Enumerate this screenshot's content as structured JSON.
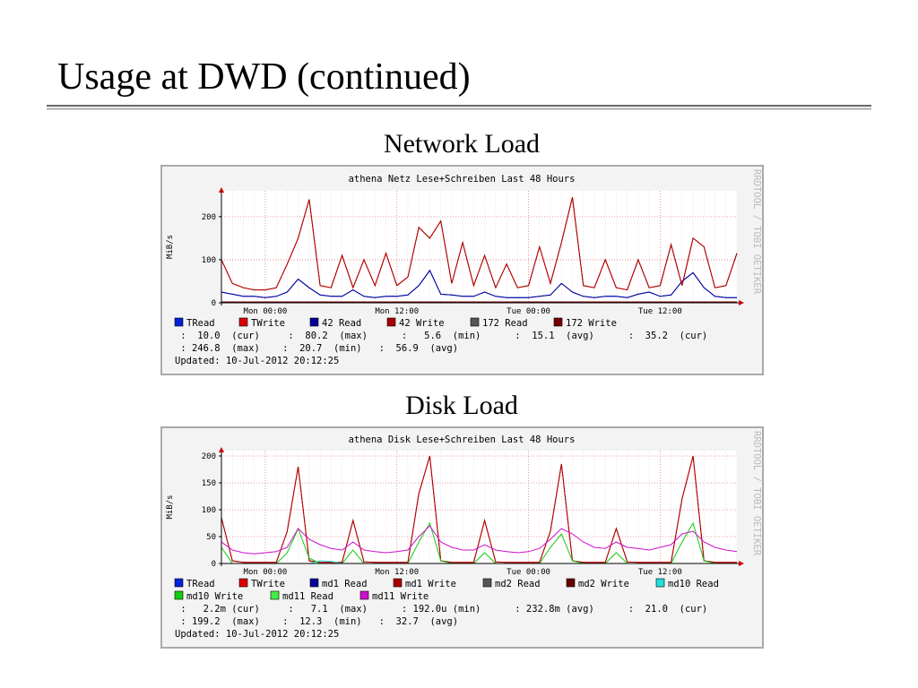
{
  "slide_title": "Usage at DWD (continued)",
  "chart_data": [
    {
      "type": "line",
      "panel_title": "Network Load",
      "title": "athena Netz Lese+Schreiben Last 48 Hours",
      "ylabel": "MiB/s",
      "watermark": "RRDTOOL / TOBI OETIKER",
      "categories": [
        null,
        null,
        null,
        null,
        "Mon 00:00",
        null,
        null,
        null,
        null,
        null,
        null,
        null,
        null,
        null,
        null,
        null,
        "Mon 12:00",
        null,
        null,
        null,
        null,
        null,
        null,
        null,
        null,
        null,
        null,
        null,
        "Tue 00:00",
        null,
        null,
        null,
        null,
        null,
        null,
        null,
        null,
        null,
        null,
        null,
        "Tue 12:00",
        null,
        null,
        null,
        null,
        null,
        null,
        null
      ],
      "ylim": [
        0,
        260
      ],
      "yticks": [
        0,
        100,
        200
      ],
      "grid": true,
      "series": [
        {
          "name": "TRead",
          "color": "#0022dd",
          "values": [
            25,
            20,
            15,
            15,
            12,
            15,
            25,
            55,
            35,
            18,
            15,
            15,
            30,
            15,
            12,
            15,
            15,
            18,
            40,
            75,
            20,
            18,
            15,
            15,
            25,
            15,
            12,
            12,
            12,
            15,
            18,
            45,
            25,
            15,
            12,
            15,
            15,
            12,
            20,
            25,
            15,
            18,
            50,
            70,
            35,
            15,
            12,
            12
          ]
        },
        {
          "name": "TWrite",
          "color": "#dd0000",
          "values": [
            100,
            45,
            35,
            30,
            30,
            35,
            90,
            150,
            240,
            40,
            35,
            110,
            35,
            100,
            40,
            115,
            40,
            60,
            175,
            150,
            190,
            45,
            140,
            40,
            110,
            35,
            90,
            35,
            40,
            130,
            45,
            140,
            245,
            40,
            35,
            100,
            35,
            30,
            100,
            35,
            40,
            135,
            40,
            150,
            130,
            35,
            40,
            115
          ]
        },
        {
          "name": "42 Read",
          "color": "#000099",
          "values": [
            25,
            20,
            15,
            15,
            12,
            15,
            25,
            55,
            35,
            18,
            15,
            15,
            30,
            15,
            12,
            15,
            15,
            18,
            40,
            75,
            20,
            18,
            15,
            15,
            25,
            15,
            12,
            12,
            12,
            15,
            18,
            45,
            25,
            15,
            12,
            15,
            15,
            12,
            20,
            25,
            15,
            18,
            50,
            70,
            35,
            15,
            12,
            12
          ]
        },
        {
          "name": "42 Write",
          "color": "#aa0000",
          "values": [
            100,
            45,
            35,
            30,
            30,
            35,
            90,
            150,
            240,
            40,
            35,
            110,
            35,
            100,
            40,
            115,
            40,
            60,
            175,
            150,
            190,
            45,
            140,
            40,
            110,
            35,
            90,
            35,
            40,
            130,
            45,
            140,
            245,
            40,
            35,
            100,
            35,
            30,
            100,
            35,
            40,
            135,
            40,
            150,
            130,
            35,
            40,
            115
          ]
        },
        {
          "name": "172 Read",
          "color": "#555555",
          "values": [
            0,
            0,
            0,
            0,
            0,
            0,
            0,
            0,
            0,
            0,
            0,
            0,
            0,
            0,
            0,
            0,
            0,
            0,
            0,
            0,
            0,
            0,
            0,
            0,
            0,
            0,
            0,
            0,
            0,
            0,
            0,
            0,
            0,
            0,
            0,
            0,
            0,
            0,
            0,
            0,
            0,
            0,
            0,
            0,
            0,
            0,
            0,
            0
          ]
        },
        {
          "name": "172 Write",
          "color": "#770000",
          "values": [
            2,
            2,
            2,
            2,
            2,
            2,
            2,
            2,
            2,
            2,
            2,
            2,
            2,
            2,
            2,
            2,
            2,
            2,
            2,
            2,
            2,
            2,
            2,
            2,
            2,
            2,
            2,
            2,
            2,
            2,
            2,
            2,
            2,
            2,
            2,
            2,
            2,
            2,
            2,
            2,
            2,
            2,
            2,
            2,
            2,
            2,
            2,
            2
          ]
        }
      ],
      "stats_lines": [
        " :  10.0  (cur)     :  80.2  (max)      :   5.6  (min)      :  15.1  (avg)      :  35.2  (cur)",
        " : 246.8  (max)    :  20.7  (min)   :  56.9  (avg)"
      ],
      "updated": "Updated: 10-Jul-2012 20:12:25"
    },
    {
      "type": "line",
      "panel_title": "Disk Load",
      "title": "athena Disk Lese+Schreiben Last 48 Hours",
      "ylabel": "MiB/s",
      "watermark": "RRDTOOL / TOBI OETIKER",
      "categories": [
        null,
        null,
        null,
        null,
        "Mon 00:00",
        null,
        null,
        null,
        null,
        null,
        null,
        null,
        null,
        null,
        null,
        null,
        "Mon 12:00",
        null,
        null,
        null,
        null,
        null,
        null,
        null,
        null,
        null,
        null,
        null,
        "Tue 00:00",
        null,
        null,
        null,
        null,
        null,
        null,
        null,
        null,
        null,
        null,
        null,
        "Tue 12:00",
        null,
        null,
        null,
        null,
        null,
        null,
        null
      ],
      "ylim": [
        0,
        210
      ],
      "yticks": [
        0,
        50,
        100,
        150,
        200
      ],
      "grid": true,
      "series": [
        {
          "name": "TRead",
          "color": "#0022dd",
          "values": [
            0,
            0,
            0,
            0,
            0,
            0,
            0,
            0,
            0,
            0,
            0,
            0,
            0,
            0,
            0,
            0,
            0,
            0,
            0,
            0,
            0,
            0,
            0,
            0,
            0,
            0,
            0,
            0,
            0,
            0,
            0,
            0,
            0,
            0,
            0,
            0,
            0,
            0,
            0,
            0,
            0,
            0,
            0,
            0,
            0,
            0,
            0,
            0
          ]
        },
        {
          "name": "TWrite",
          "color": "#dd0000",
          "values": [
            85,
            5,
            2,
            2,
            2,
            2,
            60,
            180,
            5,
            2,
            2,
            2,
            80,
            3,
            2,
            2,
            2,
            2,
            130,
            200,
            5,
            2,
            2,
            2,
            80,
            3,
            2,
            2,
            2,
            2,
            60,
            185,
            5,
            2,
            2,
            2,
            65,
            3,
            2,
            2,
            2,
            2,
            120,
            200,
            5,
            2,
            2,
            2
          ]
        },
        {
          "name": "md1 Read",
          "color": "#000099",
          "values": [
            0,
            0,
            0,
            0,
            0,
            0,
            0,
            0,
            0,
            0,
            0,
            0,
            0,
            0,
            0,
            0,
            0,
            0,
            0,
            0,
            0,
            0,
            0,
            0,
            0,
            0,
            0,
            0,
            0,
            0,
            0,
            0,
            0,
            0,
            0,
            0,
            0,
            0,
            0,
            0,
            0,
            0,
            0,
            0,
            0,
            0,
            0,
            0
          ]
        },
        {
          "name": "md1 Write",
          "color": "#aa0000",
          "values": [
            85,
            5,
            2,
            2,
            2,
            2,
            60,
            180,
            5,
            2,
            2,
            2,
            80,
            3,
            2,
            2,
            2,
            2,
            130,
            200,
            5,
            2,
            2,
            2,
            80,
            3,
            2,
            2,
            2,
            2,
            60,
            185,
            5,
            2,
            2,
            2,
            65,
            3,
            2,
            2,
            2,
            2,
            120,
            200,
            5,
            2,
            2,
            2
          ]
        },
        {
          "name": "md2 Read",
          "color": "#555555",
          "values": [
            0,
            0,
            0,
            0,
            0,
            0,
            0,
            0,
            0,
            0,
            0,
            0,
            0,
            0,
            0,
            0,
            0,
            0,
            0,
            0,
            0,
            0,
            0,
            0,
            0,
            0,
            0,
            0,
            0,
            0,
            0,
            0,
            0,
            0,
            0,
            0,
            0,
            0,
            0,
            0,
            0,
            0,
            0,
            0,
            0,
            0,
            0,
            0
          ]
        },
        {
          "name": "md2 Write",
          "color": "#660000",
          "values": [
            0,
            0,
            0,
            0,
            0,
            0,
            0,
            0,
            0,
            0,
            0,
            0,
            0,
            0,
            0,
            0,
            0,
            0,
            0,
            0,
            0,
            0,
            0,
            0,
            0,
            0,
            0,
            0,
            0,
            0,
            0,
            0,
            0,
            0,
            0,
            0,
            0,
            0,
            0,
            0,
            0,
            0,
            0,
            0,
            0,
            0,
            0,
            0
          ]
        },
        {
          "name": "md10 Read",
          "color": "#22dddd",
          "values": [
            0,
            0,
            0,
            0,
            0,
            0,
            0,
            0,
            0,
            5,
            4,
            0,
            0,
            0,
            0,
            0,
            0,
            0,
            0,
            0,
            0,
            0,
            0,
            0,
            0,
            0,
            0,
            0,
            0,
            0,
            0,
            0,
            0,
            0,
            0,
            0,
            0,
            0,
            0,
            0,
            0,
            0,
            0,
            0,
            0,
            0,
            0,
            0
          ]
        },
        {
          "name": "md10 Write",
          "color": "#11cc11",
          "values": [
            30,
            0,
            0,
            0,
            0,
            0,
            20,
            65,
            10,
            0,
            0,
            0,
            25,
            0,
            0,
            0,
            0,
            0,
            40,
            75,
            5,
            0,
            0,
            0,
            20,
            0,
            0,
            0,
            0,
            0,
            30,
            55,
            5,
            0,
            0,
            0,
            20,
            0,
            0,
            0,
            0,
            0,
            40,
            75,
            5,
            0,
            0,
            0
          ]
        },
        {
          "name": "md11 Read",
          "color": "#44ee44",
          "values": [
            0,
            0,
            0,
            0,
            0,
            0,
            0,
            0,
            0,
            0,
            0,
            0,
            0,
            0,
            0,
            0,
            0,
            0,
            0,
            0,
            0,
            0,
            0,
            0,
            0,
            0,
            0,
            0,
            0,
            0,
            0,
            0,
            0,
            0,
            0,
            0,
            0,
            0,
            0,
            0,
            0,
            0,
            0,
            0,
            0,
            0,
            0,
            0
          ]
        },
        {
          "name": "md11 Write",
          "color": "#cc11cc",
          "values": [
            40,
            25,
            20,
            18,
            20,
            22,
            30,
            65,
            45,
            35,
            28,
            25,
            40,
            25,
            22,
            20,
            22,
            25,
            50,
            70,
            40,
            30,
            25,
            25,
            35,
            25,
            22,
            20,
            22,
            28,
            45,
            65,
            55,
            40,
            30,
            28,
            40,
            30,
            28,
            25,
            30,
            35,
            55,
            60,
            40,
            30,
            25,
            22
          ]
        }
      ],
      "stats_lines": [
        " :   2.2m (cur)     :   7.1  (max)      : 192.0u (min)      : 232.8m (avg)      :  21.0  (cur)",
        " : 199.2  (max)    :  12.3  (min)   :  32.7  (avg)"
      ],
      "updated": "Updated: 10-Jul-2012 20:12:25"
    }
  ]
}
